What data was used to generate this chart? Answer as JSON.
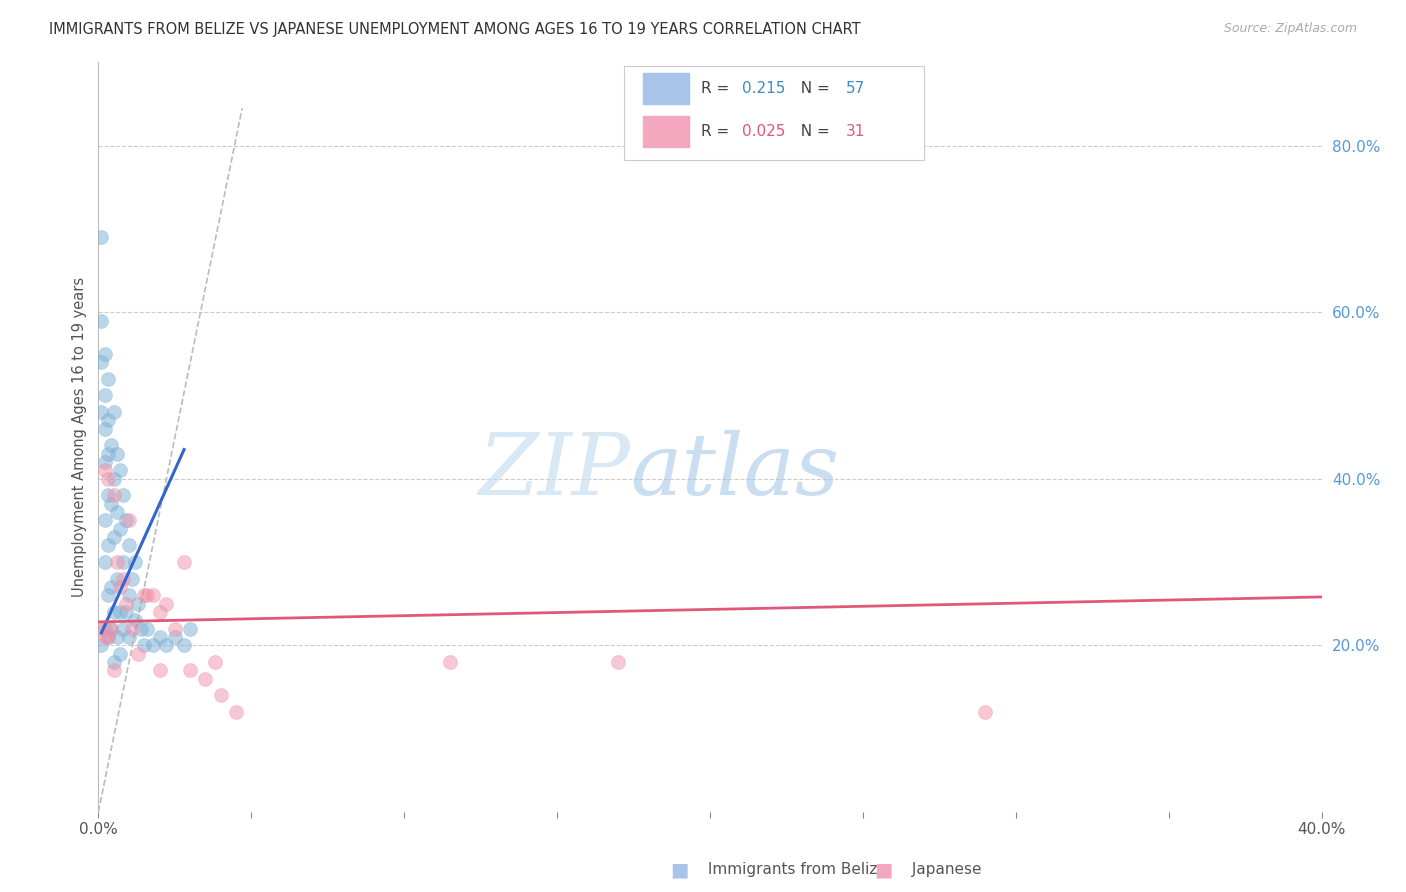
{
  "title": "IMMIGRANTS FROM BELIZE VS JAPANESE UNEMPLOYMENT AMONG AGES 16 TO 19 YEARS CORRELATION CHART",
  "source": "Source: ZipAtlas.com",
  "ylabel": "Unemployment Among Ages 16 to 19 years",
  "xlim": [
    0.0,
    0.4
  ],
  "ylim": [
    0.0,
    0.9
  ],
  "x_ticks": [
    0.0,
    0.05,
    0.1,
    0.15,
    0.2,
    0.25,
    0.3,
    0.35,
    0.4
  ],
  "x_tick_labels": [
    "0.0%",
    "",
    "",
    "",
    "",
    "",
    "",
    "",
    "40.0%"
  ],
  "y_ticks_right": [
    0.2,
    0.4,
    0.6,
    0.8
  ],
  "y_tick_labels_right": [
    "20.0%",
    "40.0%",
    "60.0%",
    "80.0%"
  ],
  "blue_scatter_x": [
    0.001,
    0.001,
    0.001,
    0.001,
    0.001,
    0.002,
    0.002,
    0.002,
    0.002,
    0.002,
    0.002,
    0.002,
    0.003,
    0.003,
    0.003,
    0.003,
    0.003,
    0.003,
    0.003,
    0.004,
    0.004,
    0.004,
    0.004,
    0.005,
    0.005,
    0.005,
    0.005,
    0.005,
    0.006,
    0.006,
    0.006,
    0.006,
    0.007,
    0.007,
    0.007,
    0.007,
    0.008,
    0.008,
    0.008,
    0.009,
    0.009,
    0.01,
    0.01,
    0.01,
    0.011,
    0.012,
    0.012,
    0.013,
    0.014,
    0.015,
    0.016,
    0.018,
    0.02,
    0.022,
    0.025,
    0.028,
    0.03
  ],
  "blue_scatter_y": [
    0.69,
    0.59,
    0.54,
    0.48,
    0.2,
    0.55,
    0.5,
    0.46,
    0.42,
    0.35,
    0.3,
    0.22,
    0.52,
    0.47,
    0.43,
    0.38,
    0.32,
    0.26,
    0.21,
    0.44,
    0.37,
    0.27,
    0.22,
    0.48,
    0.4,
    0.33,
    0.24,
    0.18,
    0.43,
    0.36,
    0.28,
    0.21,
    0.41,
    0.34,
    0.24,
    0.19,
    0.38,
    0.3,
    0.22,
    0.35,
    0.24,
    0.32,
    0.26,
    0.21,
    0.28,
    0.3,
    0.23,
    0.25,
    0.22,
    0.2,
    0.22,
    0.2,
    0.21,
    0.2,
    0.21,
    0.2,
    0.22
  ],
  "pink_scatter_x": [
    0.001,
    0.002,
    0.002,
    0.003,
    0.003,
    0.004,
    0.005,
    0.005,
    0.006,
    0.007,
    0.008,
    0.009,
    0.01,
    0.011,
    0.013,
    0.015,
    0.016,
    0.018,
    0.02,
    0.02,
    0.022,
    0.025,
    0.028,
    0.03,
    0.035,
    0.038,
    0.04,
    0.045,
    0.115,
    0.17,
    0.29
  ],
  "pink_scatter_y": [
    0.22,
    0.41,
    0.21,
    0.4,
    0.21,
    0.22,
    0.38,
    0.17,
    0.3,
    0.27,
    0.28,
    0.25,
    0.35,
    0.22,
    0.19,
    0.26,
    0.26,
    0.26,
    0.17,
    0.24,
    0.25,
    0.22,
    0.3,
    0.17,
    0.16,
    0.18,
    0.14,
    0.12,
    0.18,
    0.18,
    0.12
  ],
  "blue_line_x": [
    0.001,
    0.028
  ],
  "blue_line_y": [
    0.215,
    0.435
  ],
  "pink_line_x": [
    0.0,
    0.4
  ],
  "pink_line_y": [
    0.228,
    0.258
  ],
  "diag_line_x": [
    0.0,
    0.047
  ],
  "diag_line_y": [
    0.0,
    0.845
  ],
  "watermark_zip": "ZIP",
  "watermark_atlas": "atlas",
  "bg_color": "#ffffff",
  "scatter_blue_color": "#7bafd4",
  "scatter_pink_color": "#f090a8",
  "line_blue_color": "#3366cc",
  "line_pink_color": "#e05878",
  "legend_blue_color": "#a8c4e8",
  "legend_pink_color": "#f4a8c0",
  "legend_R1": "0.215",
  "legend_N1": "57",
  "legend_R2": "0.025",
  "legend_N2": "31",
  "num_color_blue": "#4488cc",
  "num_color_pink": "#e05878",
  "right_axis_color": "#5599dd"
}
